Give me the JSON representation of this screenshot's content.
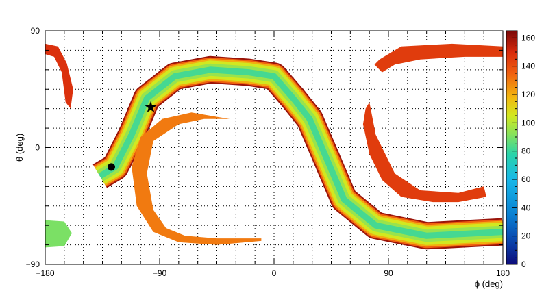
{
  "chart_data": {
    "type": "heatmap",
    "title": "",
    "xlabel": "ϕ (deg)",
    "ylabel": "θ (deg)",
    "xlim": [
      -180,
      180
    ],
    "ylim": [
      -90,
      90
    ],
    "x_ticks": [
      -180,
      -90,
      0,
      90,
      180
    ],
    "y_ticks": [
      -90,
      0,
      90
    ],
    "x_tick_labels": [
      "−180",
      "−90",
      "0",
      "90",
      "180"
    ],
    "y_tick_labels": [
      "−90",
      "0",
      "90"
    ],
    "grid": true,
    "grid_style": "dotted",
    "colorbar": {
      "min": 0,
      "max": 165,
      "ticks": [
        0,
        20,
        40,
        60,
        80,
        100,
        120,
        140,
        160
      ],
      "tick_labels": [
        "0",
        "20",
        "40",
        "60",
        "80",
        "100",
        "120",
        "140",
        "160"
      ],
      "colormap": "rainbow (blue to dark red)",
      "stops": [
        {
          "value": 0,
          "color": "#0d0c7a"
        },
        {
          "value": 15,
          "color": "#0a3fa8"
        },
        {
          "value": 35,
          "color": "#0a80d2"
        },
        {
          "value": 60,
          "color": "#18b8e8"
        },
        {
          "value": 78,
          "color": "#2ad4a8"
        },
        {
          "value": 92,
          "color": "#88e25a"
        },
        {
          "value": 105,
          "color": "#d2e820"
        },
        {
          "value": 118,
          "color": "#f2b810"
        },
        {
          "value": 135,
          "color": "#f06010"
        },
        {
          "value": 150,
          "color": "#d82a0c"
        },
        {
          "value": 165,
          "color": "#7a0808"
        }
      ]
    },
    "regions": [
      {
        "name": "s-band",
        "color_scale": "edge-to-center",
        "edge_value": 155,
        "center_value": 82,
        "centerline_phi_theta": [
          [
            -137,
            -22
          ],
          [
            -125,
            -15
          ],
          [
            -112,
            10
          ],
          [
            -100,
            38
          ],
          [
            -78,
            55
          ],
          [
            -50,
            60
          ],
          [
            -20,
            58
          ],
          [
            0,
            55
          ],
          [
            15,
            38
          ],
          [
            28,
            22
          ],
          [
            42,
            -10
          ],
          [
            55,
            -40
          ],
          [
            80,
            -60
          ],
          [
            120,
            -68
          ],
          [
            180,
            -65
          ]
        ]
      },
      {
        "name": "arc-left",
        "value": 130,
        "outline_phi_theta": [
          [
            -55,
            22
          ],
          [
            -75,
            18
          ],
          [
            -95,
            5
          ],
          [
            -100,
            -20
          ],
          [
            -95,
            -48
          ],
          [
            -85,
            -62
          ],
          [
            -70,
            -68
          ],
          [
            -45,
            -70
          ],
          [
            -10,
            -70
          ],
          [
            -10,
            -72
          ],
          [
            -45,
            -75
          ],
          [
            -75,
            -73
          ],
          [
            -95,
            -65
          ],
          [
            -108,
            -45
          ],
          [
            -112,
            -15
          ],
          [
            -105,
            8
          ],
          [
            -88,
            22
          ],
          [
            -65,
            27
          ],
          [
            -35,
            22
          ]
        ]
      },
      {
        "name": "arc-right",
        "value": 145,
        "outline_phi_theta": [
          [
            75,
            35
          ],
          [
            80,
            10
          ],
          [
            95,
            -20
          ],
          [
            115,
            -33
          ],
          [
            145,
            -35
          ],
          [
            165,
            -30
          ],
          [
            167,
            -38
          ],
          [
            145,
            -42
          ],
          [
            125,
            -42
          ],
          [
            100,
            -38
          ],
          [
            85,
            -25
          ],
          [
            75,
            -5
          ],
          [
            70,
            18
          ],
          [
            72,
            30
          ]
        ]
      },
      {
        "name": "top-right-band",
        "value": 145,
        "outline_phi_theta": [
          [
            83,
            68
          ],
          [
            100,
            78
          ],
          [
            140,
            80
          ],
          [
            180,
            78
          ],
          [
            180,
            70
          ],
          [
            150,
            70
          ],
          [
            115,
            68
          ],
          [
            95,
            64
          ],
          [
            85,
            58
          ],
          [
            79,
            64
          ]
        ]
      },
      {
        "name": "top-left-hook",
        "value": 148,
        "outline_phi_theta": [
          [
            -180,
            80
          ],
          [
            -170,
            78
          ],
          [
            -163,
            65
          ],
          [
            -158,
            45
          ],
          [
            -160,
            30
          ],
          [
            -164,
            35
          ],
          [
            -167,
            58
          ],
          [
            -173,
            70
          ],
          [
            -180,
            72
          ]
        ]
      },
      {
        "name": "bottom-left-band",
        "value": 90,
        "outline_phi_theta": [
          [
            -180,
            -56
          ],
          [
            -165,
            -57
          ],
          [
            -159,
            -66
          ],
          [
            -165,
            -76
          ],
          [
            -180,
            -77
          ]
        ]
      }
    ],
    "markers": [
      {
        "name": "circle-marker",
        "symbol": "circle",
        "phi": -128,
        "theta": -15
      },
      {
        "name": "star-marker",
        "symbol": "star",
        "phi": -97,
        "theta": 31
      }
    ]
  }
}
